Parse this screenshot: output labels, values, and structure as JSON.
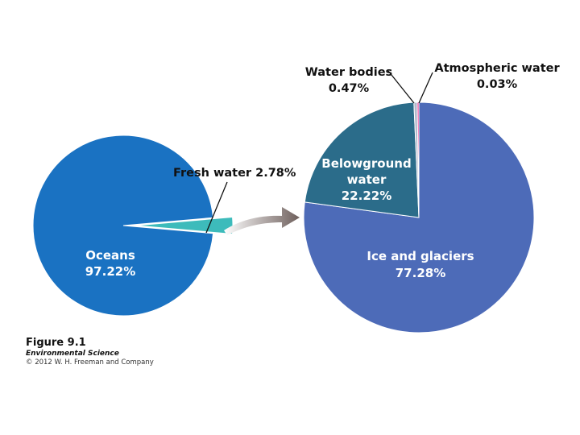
{
  "chart_data": [
    {
      "type": "pie",
      "slices": [
        {
          "label": "Oceans",
          "value": 97.22,
          "display": "97.22%",
          "color": "#1a72c2"
        },
        {
          "label": "Fresh water",
          "value": 2.78,
          "display": "2.78%",
          "color": "#3dbbbb"
        }
      ]
    },
    {
      "type": "pie",
      "slices": [
        {
          "label": "Ice and glaciers",
          "value": 77.28,
          "display": "77.28%",
          "color": "#4d6bb8"
        },
        {
          "label": "Belowground water",
          "value": 22.22,
          "display": "22.22%",
          "color": "#2b6c8a"
        },
        {
          "label": "Water bodies",
          "value": 0.47,
          "display": "0.47%",
          "color": "#b3b8cc"
        },
        {
          "label": "Atmospheric water",
          "value": 0.03,
          "display": "0.03%",
          "color": "#e0127d"
        }
      ]
    }
  ],
  "labels": {
    "oceans_name": "Oceans",
    "oceans_value": "97.22%",
    "fresh": "Fresh water 2.78%",
    "below_line1": "Belowground",
    "below_line2": "water",
    "below_value": "22.22%",
    "ice_name": "Ice and glaciers",
    "ice_value": "77.28%",
    "bodies_name": "Water bodies",
    "bodies_value": "0.47%",
    "atmo_name": "Atmospheric water",
    "atmo_value": "0.03%"
  },
  "caption": {
    "figure": "Figure 9.1",
    "book": "Environmental Science",
    "copyright": "© 2012 W. H. Freeman and Company"
  }
}
